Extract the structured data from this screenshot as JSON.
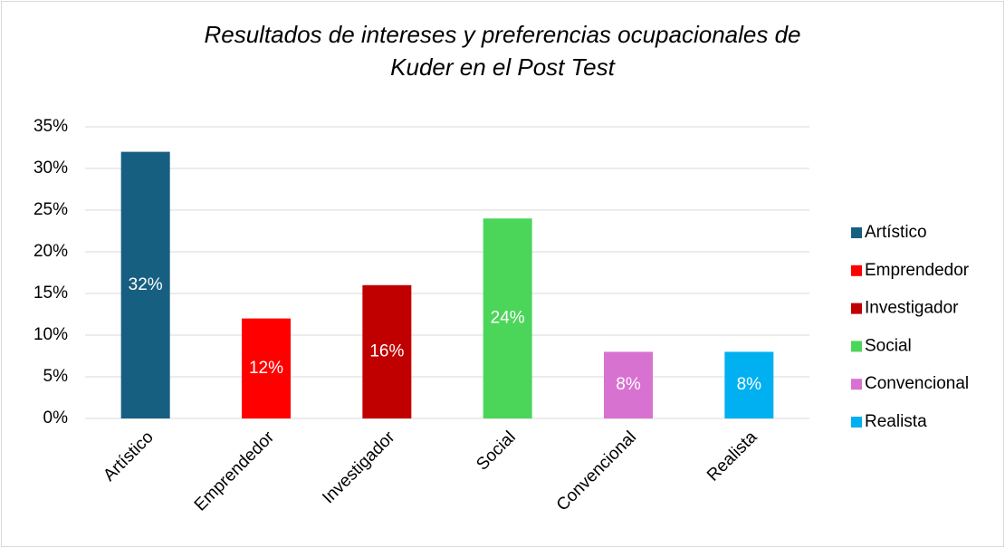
{
  "chart_data": {
    "type": "bar",
    "title": [
      "Resultados de intereses y preferencias ocupacionales de",
      "Kuder en el Post Test"
    ],
    "categories": [
      "Artístico",
      "Emprendedor",
      "Investigador",
      "Social",
      "Convencional",
      "Realista"
    ],
    "values": [
      32,
      12,
      16,
      24,
      8,
      8
    ],
    "value_labels": [
      "32%",
      "12%",
      "16%",
      "24%",
      "8%",
      "8%"
    ],
    "colors": [
      "#175f81",
      "#ff0000",
      "#c00000",
      "#4bd65a",
      "#d872d0",
      "#00b0f0"
    ],
    "ylim": [
      0,
      35
    ],
    "yticks": [
      {
        "value": 0,
        "label": "0%"
      },
      {
        "value": 5,
        "label": "5%"
      },
      {
        "value": 10,
        "label": "10%"
      },
      {
        "value": 15,
        "label": "15%"
      },
      {
        "value": 20,
        "label": "20%"
      },
      {
        "value": 25,
        "label": "25%"
      },
      {
        "value": 30,
        "label": "30%"
      },
      {
        "value": 35,
        "label": "35%"
      }
    ],
    "grid": true,
    "legend": "right"
  }
}
